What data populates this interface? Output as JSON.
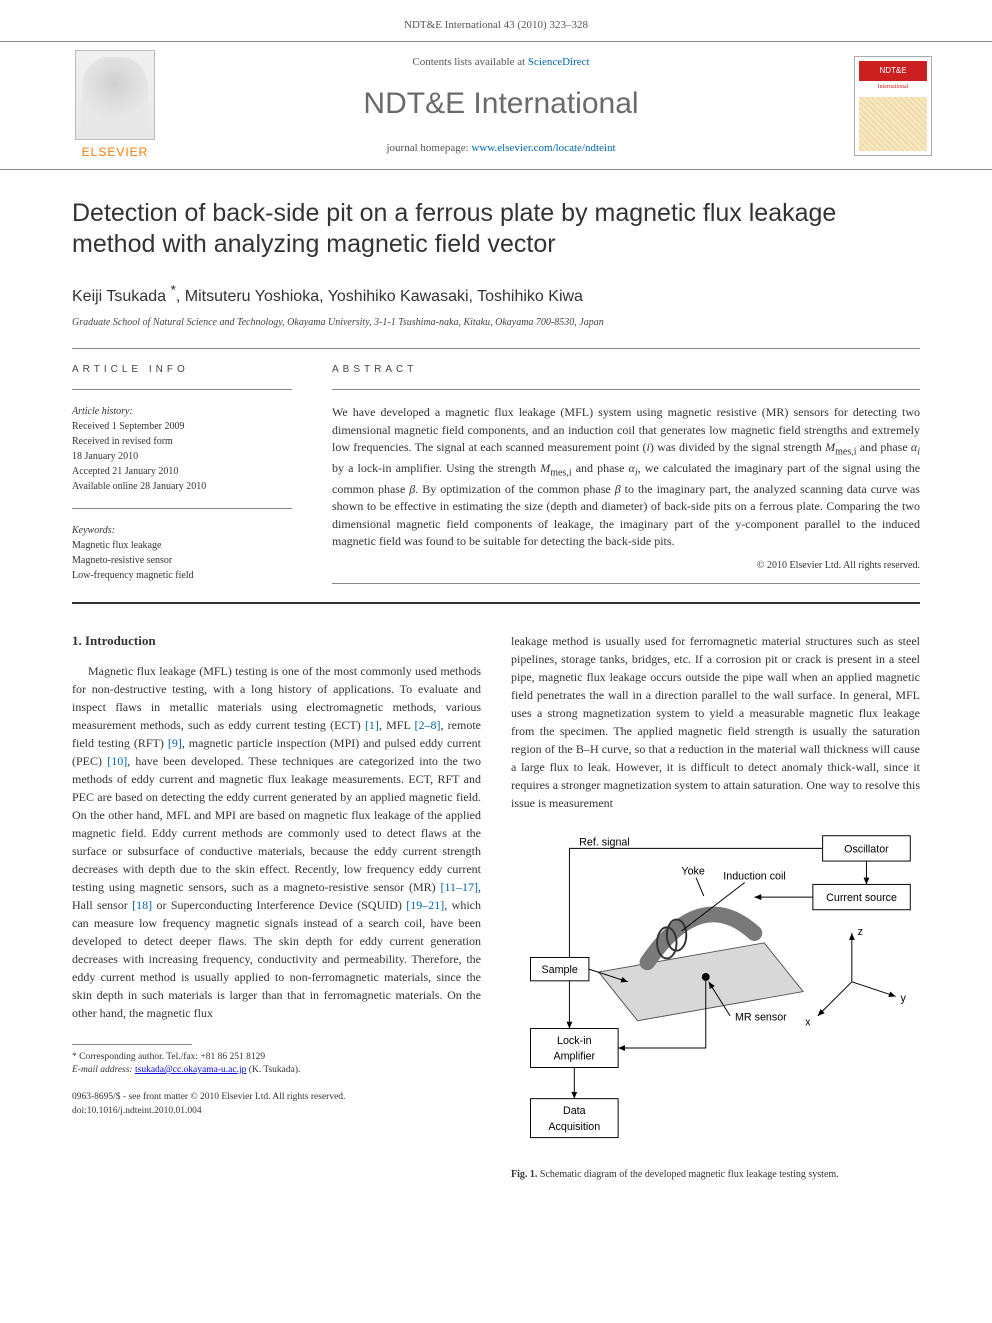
{
  "pageHeader": "NDT&E International 43 (2010) 323–328",
  "masthead": {
    "elsevierWord": "ELSEVIER",
    "contentsPrefix": "Contents lists available at ",
    "contentsLink": "ScienceDirect",
    "journalName": "NDT&E International",
    "homepagePrefix": "journal homepage: ",
    "homepageUrl": "www.elsevier.com/locate/ndteint",
    "coverBadge": "NDT&E",
    "coverIntl": "International"
  },
  "article": {
    "title": "Detection of back-side pit on a ferrous plate by magnetic flux leakage method with analyzing magnetic field vector",
    "authors": "Keiji Tsukada *, Mitsuteru Yoshioka, Yoshihiko Kawasaki, Toshihiko Kiwa",
    "affiliation": "Graduate School of Natural Science and Technology, Okayama University, 3-1-1 Tsushima-naka, Kitaku, Okayama 700-8530, Japan"
  },
  "info": {
    "sectionLabel": "ARTICLE INFO",
    "historyTitle": "Article history:",
    "history": [
      "Received 1 September 2009",
      "Received in revised form",
      "18 January 2010",
      "Accepted 21 January 2010",
      "Available online 28 January 2010"
    ],
    "keywordsTitle": "Keywords:",
    "keywords": [
      "Magnetic flux leakage",
      "Magneto-resistive sensor",
      "Low-frequency magnetic field"
    ]
  },
  "abstract": {
    "sectionLabel": "ABSTRACT",
    "text": "We have developed a magnetic flux leakage (MFL) system using magnetic resistive (MR) sensors for detecting two dimensional magnetic field components, and an induction coil that generates low magnetic field strengths and extremely low frequencies. The signal at each scanned measurement point (i) was divided by the signal strength M_{mes,i} and phase α_i by a lock-in amplifier. Using the strength M_{mes,i} and phase α_i, we calculated the imaginary part of the signal using the common phase β. By optimization of the common phase β to the imaginary part, the analyzed scanning data curve was shown to be effective in estimating the size (depth and diameter) of back-side pits on a ferrous plate. Comparing the two dimensional magnetic field components of leakage, the imaginary part of the y-component parallel to the induced magnetic field was found to be suitable for detecting the back-side pits.",
    "copyright": "© 2010 Elsevier Ltd. All rights reserved."
  },
  "intro": {
    "heading": "1. Introduction",
    "leftText": "Magnetic flux leakage (MFL) testing is one of the most commonly used methods for non-destructive testing, with a long history of applications. To evaluate and inspect flaws in metallic materials using electromagnetic methods, various measurement methods, such as eddy current testing (ECT) [1], MFL [2–8], remote field testing (RFT) [9], magnetic particle inspection (MPI) and pulsed eddy current (PEC) [10], have been developed. These techniques are categorized into the two methods of eddy current and magnetic flux leakage measurements. ECT, RFT and PEC are based on detecting the eddy current generated by an applied magnetic field. On the other hand, MFL and MPI are based on magnetic flux leakage of the applied magnetic field. Eddy current methods are commonly used to detect flaws at the surface or subsurface of conductive materials, because the eddy current strength decreases with depth due to the skin effect. Recently, low frequency eddy current testing using magnetic sensors, such as a magneto-resistive sensor (MR) [11–17], Hall sensor [18] or Superconducting Interference Device (SQUID) [19–21], which can measure low frequency magnetic signals instead of a search coil, have been developed to detect deeper flaws. The skin depth for eddy current generation decreases with increasing frequency, conductivity and permeability. Therefore, the eddy current method is usually applied to non-ferromagnetic materials, since the skin depth in such materials is larger than that in ferromagnetic materials. On the other hand, the magnetic flux",
    "rightText": "leakage method is usually used for ferromagnetic material structures such as steel pipelines, storage tanks, bridges, etc. If a corrosion pit or crack is present in a steel pipe, magnetic flux leakage occurs outside the pipe wall when an applied magnetic field penetrates the wall in a direction parallel to the wall surface. In general, MFL uses a strong magnetization system to yield a measurable magnetic flux leakage from the specimen. The applied magnetic field strength is usually the saturation region of the B–H curve, so that a reduction in the material wall thickness will cause a large flux to leak. However, it is difficult to detect anomaly thick-wall, since it requires a stronger magnetization system to attain saturation. One way to resolve this issue is measurement",
    "refs": {
      "r1": "[1]",
      "r2_8": "[2–8]",
      "r9": "[9]",
      "r10": "[10]",
      "r11_17": "[11–17]",
      "r18": "[18]",
      "r19_21": "[19–21]"
    }
  },
  "figure1": {
    "caption": "Fig. 1. Schematic diagram of the developed magnetic flux leakage testing system.",
    "labels": {
      "refSignal": "Ref. signal",
      "yoke": "Yoke",
      "inductionCoil": "Induction coil",
      "oscillator": "Oscillator",
      "currentSource": "Current source",
      "sample": "Sample",
      "mrSensor": "MR sensor",
      "lockin": "Lock-in\nAmplifier",
      "dataAcq": "Data\nAcquisition",
      "axisX": "x",
      "axisY": "y",
      "axisZ": "z"
    },
    "style": {
      "boxStroke": "#000000",
      "boxFill": "#ffffff",
      "arrowStroke": "#000000",
      "plateFill": "#d8d8d8",
      "yokeFill": "#b8b8b8",
      "coilFill": "#999999",
      "fontSize": 11,
      "font": "Arial, sans-serif"
    }
  },
  "footnote": {
    "corrLabel": "* Corresponding author. Tel./fax: +81 86 251 8129",
    "emailLabel": "E-mail address:",
    "email": "tsukada@cc.okayama-u.ac.jp",
    "emailName": "(K. Tsukada)."
  },
  "copyrightBlock": {
    "line1": "0963-8695/$ - see front matter © 2010 Elsevier Ltd. All rights reserved.",
    "line2": "doi:10.1016/j.ndteint.2010.01.004"
  },
  "colors": {
    "linkColor": "#0066aa",
    "orange": "#ff7a00",
    "coverRed": "#cc2020"
  }
}
